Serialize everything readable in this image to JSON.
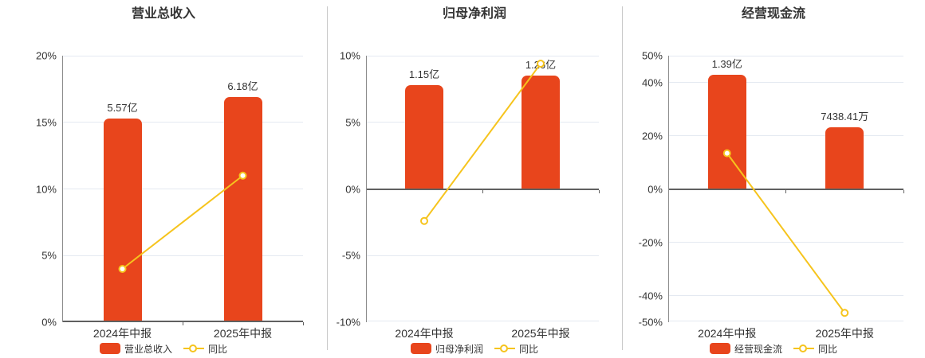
{
  "colors": {
    "bar": "#e8451c",
    "line": "#f6c41d",
    "grid": "#e4e9f1",
    "zero_axis": "#606060",
    "y_axis": "#8c8c8c",
    "divider": "#c9c9c9",
    "text": "#333333"
  },
  "chart_data": [
    {
      "type": "bar+line",
      "title": "营业总收入",
      "categories": [
        "2024年中报",
        "2025年中报"
      ],
      "bar_series": {
        "name": "营业总收入",
        "value_labels": [
          "5.57亿",
          "6.18亿"
        ],
        "display_pct": [
          15.3,
          16.9
        ]
      },
      "line_series": {
        "name": "同比",
        "values_pct": [
          4.0,
          11.0
        ]
      },
      "y_axis": {
        "min": 0,
        "max": 20,
        "tick_values": [
          20,
          15,
          10,
          5,
          0
        ],
        "tick_labels": [
          "20%",
          "15%",
          "10%",
          "5%",
          "0%"
        ]
      },
      "legend_position": "bottom"
    },
    {
      "type": "bar+line",
      "title": "归母净利润",
      "categories": [
        "2024年中报",
        "2025年中报"
      ],
      "bar_series": {
        "name": "归母净利润",
        "value_labels": [
          "1.15亿",
          "1.26亿"
        ],
        "display_pct": [
          7.8,
          8.5
        ]
      },
      "line_series": {
        "name": "同比",
        "values_pct": [
          -2.4,
          9.4
        ]
      },
      "y_axis": {
        "min": -10,
        "max": 10,
        "tick_values": [
          10,
          5,
          0,
          -5,
          -10
        ],
        "tick_labels": [
          "10%",
          "5%",
          "0%",
          "-5%",
          "-10%"
        ]
      },
      "legend_position": "bottom"
    },
    {
      "type": "bar+line",
      "title": "经营现金流",
      "categories": [
        "2024年中报",
        "2025年中报"
      ],
      "bar_series": {
        "name": "经营现金流",
        "value_labels": [
          "1.39亿",
          "7438.41万"
        ],
        "display_pct": [
          42.7,
          23.0
        ]
      },
      "line_series": {
        "name": "同比",
        "values_pct": [
          13.4,
          -46.5
        ]
      },
      "y_axis": {
        "min": -50,
        "max": 50,
        "tick_values": [
          50,
          40,
          20,
          0,
          -20,
          -40,
          -50
        ],
        "tick_labels": [
          "50%",
          "40%",
          "20%",
          "0%",
          "-20%",
          "-40%",
          "-50%"
        ]
      },
      "legend_position": "bottom"
    }
  ]
}
